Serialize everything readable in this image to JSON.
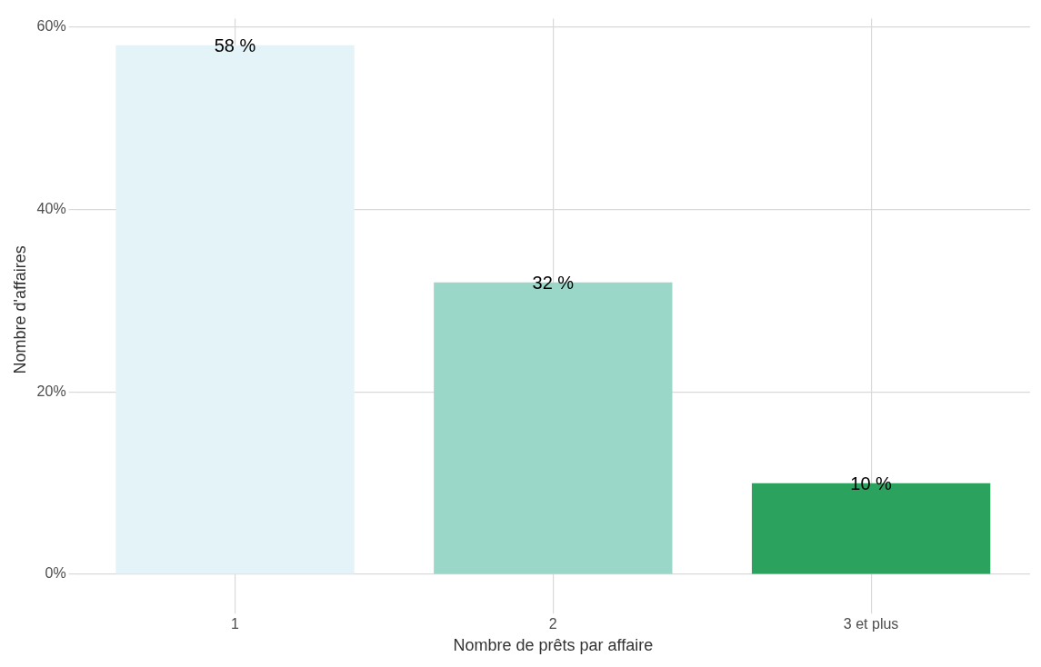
{
  "chart_data": {
    "type": "bar",
    "xlabel": "Nombre de prêts par affaire",
    "ylabel": "Nombre d'affaires",
    "categories": [
      "1",
      "2",
      "3 et plus"
    ],
    "values": [
      58,
      32,
      10
    ],
    "colors": [
      "#e3f3f8",
      "#9ad7c9",
      "#2ca25f"
    ],
    "value_labels": [
      "58 %",
      "32 %",
      "10 %"
    ],
    "ylim": [
      -2.9,
      60.9
    ],
    "yticks": [
      {
        "value": 0,
        "label": "0%"
      },
      {
        "value": 20,
        "label": "20%"
      },
      {
        "value": 40,
        "label": "40%"
      },
      {
        "value": 60,
        "label": "60%"
      }
    ],
    "grid": true,
    "legend": false
  }
}
